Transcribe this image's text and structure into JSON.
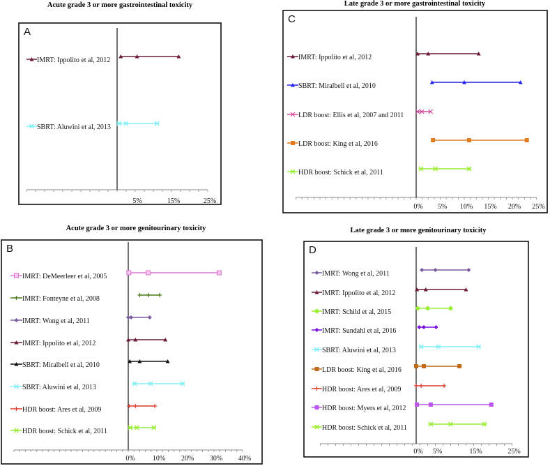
{
  "chart_data": [
    {
      "type": "forest",
      "panel": "A",
      "title": "Acute grade 3 or more gastrointestinal toxicity",
      "xlim": [
        -25,
        25
      ],
      "tick_labels": [
        "5%",
        "15%",
        "25%"
      ],
      "tick_values": [
        5,
        15,
        25
      ],
      "series": [
        {
          "name": "IMRT: Ippolito et al, 2012",
          "values": [
            1,
            5.5,
            17
          ],
          "color": "#6b1a3a",
          "marker": "triangle"
        },
        {
          "name": "SBRT: Aluwini et al, 2013",
          "values": [
            0.5,
            2.5,
            11
          ],
          "color": "#7ff0f5",
          "marker": "asterisk"
        }
      ]
    },
    {
      "type": "forest",
      "panel": "B",
      "title": "Acute grade 3 or more genitourinary toxicity",
      "xlim": [
        -40,
        40
      ],
      "tick_labels": [
        "0%",
        "10%",
        "20%",
        "30%",
        "40%"
      ],
      "tick_values": [
        0,
        10,
        20,
        30,
        40
      ],
      "series": [
        {
          "name": "IMRT: DeMeerleer et al, 2005",
          "values": [
            0.2,
            7,
            31.8
          ],
          "color": "#e070d0",
          "marker": "hollow-square"
        },
        {
          "name": "IMRT: Fonteyne et al, 2008",
          "values": [
            4,
            7,
            11
          ],
          "color": "#4a7a1a",
          "marker": "plus"
        },
        {
          "name": "IMRT: Wong et al, 2011",
          "values": [
            0,
            1,
            7.5
          ],
          "color": "#7a5aa0",
          "marker": "diamond"
        },
        {
          "name": "IMRT: Ippolito et al, 2012",
          "values": [
            0,
            2.5,
            13
          ],
          "color": "#6b1a3a",
          "marker": "triangle"
        },
        {
          "name": "SBRT: Miralbell et al, 2010",
          "values": [
            0.5,
            4,
            13.8
          ],
          "color": "#111111",
          "marker": "triangle"
        },
        {
          "name": "SBRT: Aluwini et al, 2013",
          "values": [
            2.2,
            7.8,
            19
          ],
          "color": "#7ff0f5",
          "marker": "asterisk"
        },
        {
          "name": "HDR boost: Ares et al, 2009",
          "values": [
            0.3,
            2.5,
            9.3
          ],
          "color": "#e03a2a",
          "marker": "plus"
        },
        {
          "name": "HDR boost: Schick et al, 2011",
          "values": [
            0.7,
            3,
            9
          ],
          "color": "#99ee33",
          "marker": "asterisk"
        }
      ]
    },
    {
      "type": "forest",
      "panel": "C",
      "title": "Late grade 3 or more gastrointestinal toxicity",
      "xlim": [
        -25,
        25
      ],
      "tick_labels": [
        "0%",
        "5%",
        "10%",
        "15%",
        "20%",
        "25%"
      ],
      "tick_values": [
        0,
        5,
        10,
        15,
        20,
        25
      ],
      "series": [
        {
          "name": "IMRT: Ippolito et al, 2012",
          "values": [
            0.3,
            2.5,
            13
          ],
          "color": "#6b1a3a",
          "marker": "triangle"
        },
        {
          "name": "SBRT: Miralbell et al, 2010",
          "values": [
            3.3,
            10,
            21.7
          ],
          "color": "#2222ee",
          "marker": "triangle"
        },
        {
          "name": "LDR boost: Ellis et al, 2007 and 2011",
          "values": [
            0.3,
            1.2,
            3
          ],
          "color": "#d04a9a",
          "marker": "x"
        },
        {
          "name": "LDR boost: King et al, 2016",
          "values": [
            3.5,
            11,
            23
          ],
          "color": "#e07b20",
          "marker": "square"
        },
        {
          "name": "HDR boost: Schick et al, 2011",
          "values": [
            1,
            4,
            11
          ],
          "color": "#99ee33",
          "marker": "asterisk"
        }
      ]
    },
    {
      "type": "forest",
      "panel": "D",
      "title": "Late grade 3 or more genitourinary toxicity",
      "xlim": [
        -25,
        25
      ],
      "tick_labels": [
        "0%",
        "5%",
        "15%",
        "25%"
      ],
      "tick_values": [
        0,
        5,
        15,
        25
      ],
      "series": [
        {
          "name": "IMRT: Wong et al, 2011",
          "values": [
            1.5,
            5,
            13.7
          ],
          "color": "#7a5aa0",
          "marker": "diamond"
        },
        {
          "name": "IMRT: Ippolito et al, 2012",
          "values": [
            0.2,
            2.5,
            13
          ],
          "color": "#6b1a3a",
          "marker": "triangle"
        },
        {
          "name": "IMRT: Schild et al, 2015",
          "values": [
            0.4,
            3,
            9
          ],
          "color": "#99ee33",
          "marker": "circle"
        },
        {
          "name": "IMRT: Sundahl et al, 2016",
          "values": [
            0.8,
            2,
            5.2
          ],
          "color": "#7a10e0",
          "marker": "diamond"
        },
        {
          "name": "SBRT: Aluwini et al, 2013",
          "values": [
            1.3,
            5.8,
            16.3
          ],
          "color": "#7ff0f5",
          "marker": "asterisk"
        },
        {
          "name": "LDR boost: King et al, 2016",
          "values": [
            0,
            2,
            11.3
          ],
          "color": "#c06a1a",
          "marker": "square"
        },
        {
          "name": "HDR boost: Ares et al, 2009",
          "values": [
            0,
            1.3,
            7.3
          ],
          "color": "#e03a2a",
          "marker": "plus"
        },
        {
          "name": "HDR boost: Myers et al, 2012",
          "values": [
            0.2,
            3.8,
            19.6
          ],
          "color": "#bb55ee",
          "marker": "square"
        },
        {
          "name": "HDR boost: Schick et al, 2011",
          "values": [
            3.8,
            9,
            17.8
          ],
          "color": "#99ee33",
          "marker": "asterisk"
        }
      ]
    }
  ]
}
